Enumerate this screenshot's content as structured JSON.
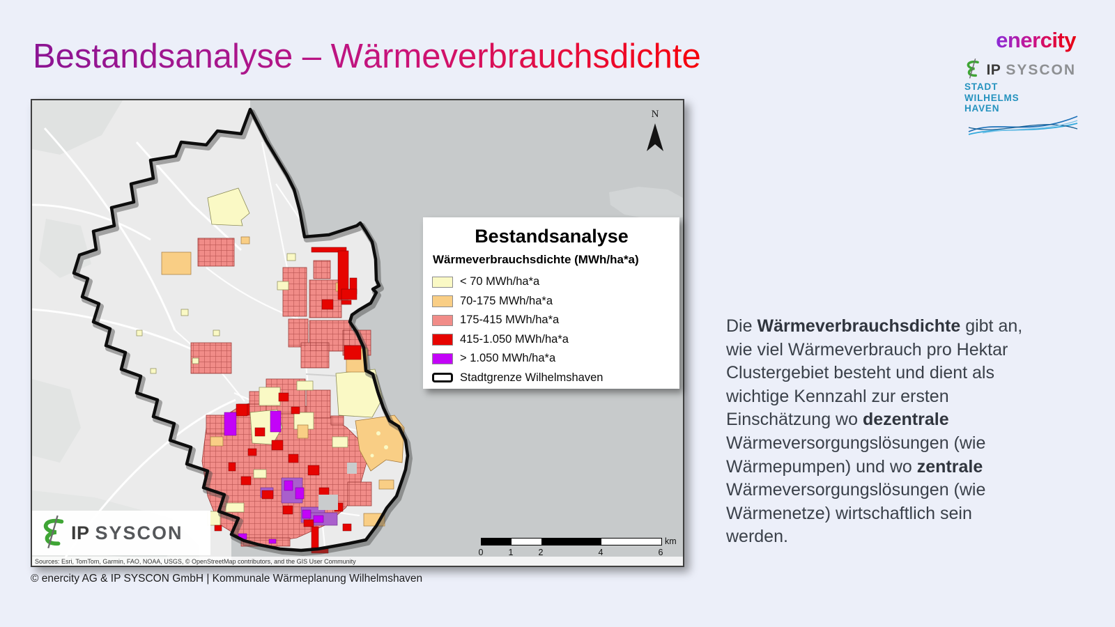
{
  "slide": {
    "title": "Bestandsanalyse – Wärmeverbrauchsdichte",
    "footer": "© enercity AG & IP SYSCON GmbH | Kommunale Wärmeplanung Wilhelmshaven"
  },
  "logos": {
    "enercity": {
      "text": "enercity"
    },
    "ipsyscon": {
      "text_primary": "IP",
      "text_secondary": "SYSCON",
      "icon_color": "#3FA535"
    },
    "stadt": {
      "lines": [
        "STADT",
        "WILHELMS",
        "HAVEN"
      ],
      "color": "#2492BE"
    }
  },
  "map": {
    "north_label": "N",
    "sources": "Sources: Esri, TomTom, Garmin, FAO, NOAA, USGS, © OpenStreetMap contributors, and the GIS User Community",
    "corner_logo": {
      "text_primary": "IP",
      "text_secondary": "SYSCON"
    },
    "colors": {
      "land": "#EBEBEB",
      "water": "#C7CACB",
      "boundary": "#0D0D0D"
    },
    "legend": {
      "title": "Bestandsanalyse",
      "subtitle": "Wärmeverbrauchsdichte (MWh/ha*a)",
      "items": [
        {
          "label": "< 70 MWh/ha*a",
          "color": "#FAF9C5",
          "type": "fill"
        },
        {
          "label": "70-175 MWh/ha*a",
          "color": "#F9CE85",
          "type": "fill"
        },
        {
          "label": "175-415 MWh/ha*a",
          "color": "#F18C88",
          "type": "fill"
        },
        {
          "label": "415-1.050 MWh/ha*a",
          "color": "#E60400",
          "type": "fill"
        },
        {
          "label": "> 1.050 MWh/ha*a",
          "color": "#C303F8",
          "type": "fill"
        },
        {
          "label": "Stadtgrenze Wilhelmshaven",
          "color": "#0B0B0B",
          "type": "outline"
        }
      ]
    },
    "scalebar": {
      "labels": [
        "0",
        "1",
        "2",
        "4",
        "6"
      ],
      "positions": [
        0,
        1,
        2,
        4,
        6
      ],
      "max": 6,
      "unit": "km"
    }
  },
  "sidebar_text": {
    "lines": [
      [
        {
          "t": "Die "
        },
        {
          "t": "Wärmeverbrauchsdichte",
          "b": true
        },
        {
          "t": " gibt an,"
        }
      ],
      [
        {
          "t": "wie viel Wärmeverbrauch pro Hektar"
        }
      ],
      [
        {
          "t": "Clustergebiet besteht und dient als"
        }
      ],
      [
        {
          "t": "wichtige Kennzahl zur ersten"
        }
      ],
      [
        {
          "t": "Einschätzung wo "
        },
        {
          "t": "dezentrale",
          "b": true
        }
      ],
      [
        {
          "t": "Wärmeversorgungslösungen (wie"
        }
      ],
      [
        {
          "t": "Wärmepumpen) und wo "
        },
        {
          "t": "zentrale",
          "b": true
        }
      ],
      [
        {
          "t": "Wärmeversorgungslösungen (wie"
        }
      ],
      [
        {
          "t": "Wärmenetze) wirtschaftlich sein"
        }
      ],
      [
        {
          "t": "werden."
        }
      ]
    ]
  }
}
